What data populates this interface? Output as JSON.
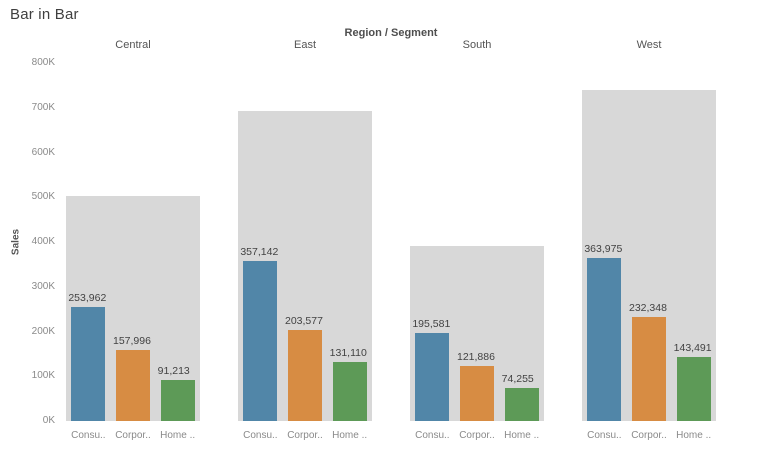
{
  "title": "Bar in Bar",
  "chart_data": {
    "type": "bar",
    "variant": "bar-in-bar",
    "column_header": "Region / Segment",
    "ylabel": "Sales",
    "xlabel": "",
    "ylim": [
      0,
      800000
    ],
    "yticks": [
      "800K",
      "700K",
      "600K",
      "500K",
      "400K",
      "300K",
      "200K",
      "100K",
      "0K"
    ],
    "grid": false,
    "legend": false,
    "segments": [
      "Consumer",
      "Corporate",
      "Home Office"
    ],
    "segment_tick_labels": [
      "Consu..",
      "Corpor..",
      "Home .."
    ],
    "segment_colors": [
      "#5186a8",
      "#d78c43",
      "#5d9a57"
    ],
    "total_bar_color": "#d8d8d8",
    "regions": [
      {
        "name": "Central",
        "total": 503171,
        "values": [
          253962,
          157996,
          91213
        ],
        "value_labels": [
          "253,962",
          "157,996",
          "91,213"
        ]
      },
      {
        "name": "East",
        "total": 691829,
        "values": [
          357142,
          203577,
          131110
        ],
        "value_labels": [
          "357,142",
          "203,577",
          "131,110"
        ]
      },
      {
        "name": "South",
        "total": 391722,
        "values": [
          195581,
          121886,
          74255
        ],
        "value_labels": [
          "195,581",
          "121,886",
          "74,255"
        ]
      },
      {
        "name": "West",
        "total": 739814,
        "values": [
          363975,
          232348,
          143491
        ],
        "value_labels": [
          "363,975",
          "232,348",
          "143,491"
        ]
      }
    ]
  }
}
